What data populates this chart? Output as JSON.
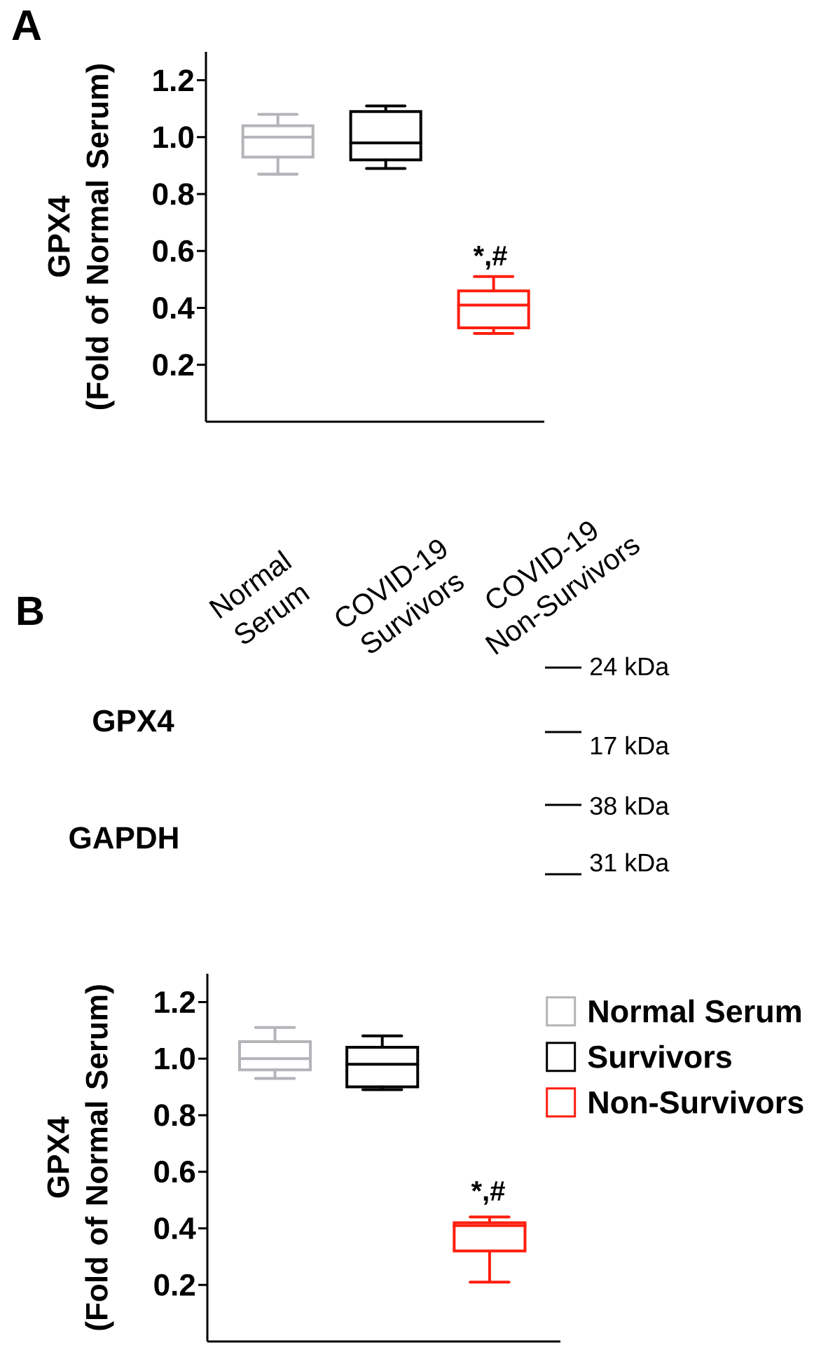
{
  "chart_data": [
    {
      "type": "box",
      "title": "A",
      "ylabel": "GPX4\n(Fold of Normal Serum)",
      "categories": [
        null,
        null,
        null
      ],
      "series": [
        {
          "color": "#b4b4b9",
          "boxes": [
            {
              "low": 0.87,
              "q1": 0.93,
              "median": 1.0,
              "q3": 1.04,
              "high": 1.08
            },
            null,
            null
          ]
        },
        {
          "color": "#000000",
          "boxes": [
            null,
            {
              "low": 0.89,
              "q1": 0.92,
              "median": 0.98,
              "q3": 1.09,
              "high": 1.11
            },
            null
          ]
        },
        {
          "color": "#ff1e0f",
          "boxes": [
            null,
            null,
            {
              "low": 0.31,
              "q1": 0.33,
              "median": 0.41,
              "q3": 0.46,
              "high": 0.51
            }
          ]
        }
      ],
      "ylim": [
        0,
        1.3
      ],
      "yticks": [
        0.2,
        0.4,
        0.6,
        0.8,
        {
          "value": 1,
          "label": "1.0"
        },
        1.2
      ],
      "tick_labels": "y",
      "annotations": [
        "*,#"
      ]
    },
    {
      "type": "other",
      "title": "B",
      "categories": [
        "Normal Serum",
        "COVID-19 Survivors",
        "COVID-19 Non-Survivors"
      ],
      "annotations": [
        "GPX4",
        "GAPDH",
        "24 kDa",
        "17 kDa",
        "38 kDa",
        "31 kDa"
      ]
    },
    {
      "type": "box",
      "ylabel": "GPX4\n(Fold of Normal Serum)",
      "categories": [
        null,
        null,
        null
      ],
      "series": [
        {
          "name": "Normal Serum",
          "color": "#b4b4b9",
          "boxes": [
            {
              "low": 0.93,
              "q1": 0.96,
              "median": 1.0,
              "q3": 1.06,
              "high": 1.11
            },
            null,
            null
          ]
        },
        {
          "name": "Survivors",
          "color": "#000000",
          "boxes": [
            null,
            {
              "low": 0.89,
              "q1": 0.9,
              "median": 0.98,
              "q3": 1.04,
              "high": 1.08
            },
            null
          ]
        },
        {
          "name": "Non-Survivors",
          "color": "#ff1e0f",
          "boxes": [
            null,
            null,
            {
              "low": 0.21,
              "q1": 0.32,
              "median": 0.41,
              "q3": 0.42,
              "high": 0.44
            }
          ]
        }
      ],
      "ylim": [
        0,
        1.3
      ],
      "yticks": [
        0.2,
        0.4,
        0.6,
        0.8,
        {
          "value": 1,
          "label": "1.0"
        },
        1.2
      ],
      "tick_labels": "y",
      "legend": "top right",
      "annotations": [
        "*,#"
      ]
    }
  ]
}
